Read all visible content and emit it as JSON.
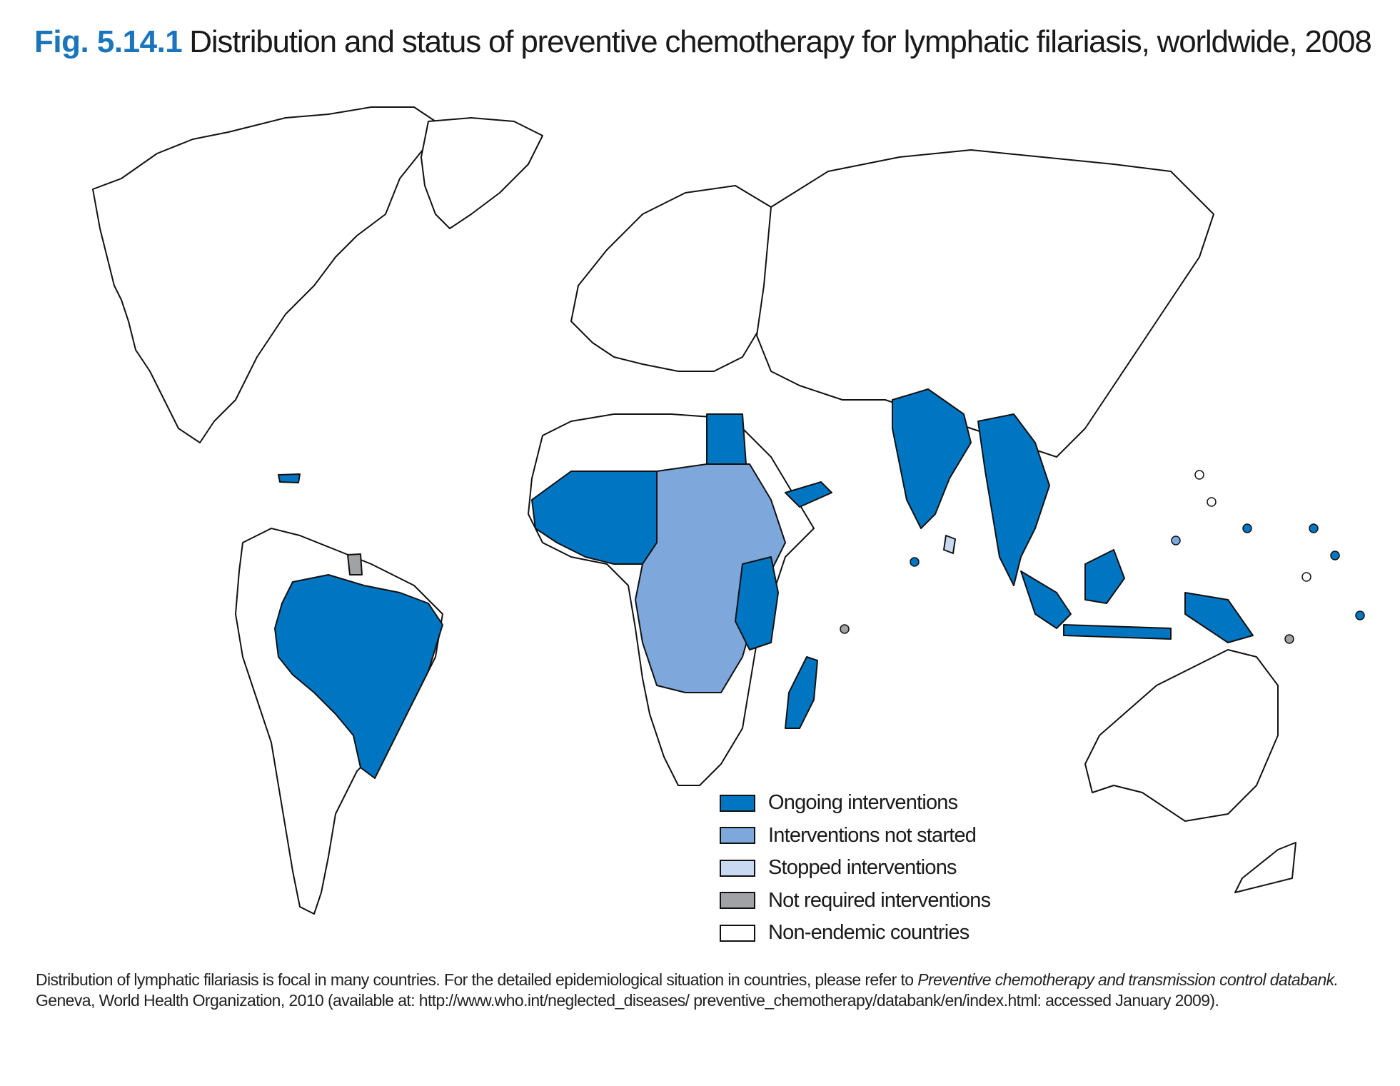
{
  "figure": {
    "number": "Fig. 5.14.1",
    "title": "Distribution and status of preventive chemotherapy for lymphatic filariasis, worldwide, 2008"
  },
  "legend": {
    "items": [
      {
        "label": "Ongoing interventions",
        "color": "#0075c2"
      },
      {
        "label": "Interventions not started",
        "color": "#7ea7dc"
      },
      {
        "label": "Stopped interventions",
        "color": "#c9d9f2"
      },
      {
        "label": "Not required interventions",
        "color": "#a0a2a6"
      },
      {
        "label": "Non-endemic countries",
        "color": "#ffffff"
      }
    ]
  },
  "note": {
    "text_1": "Distribution of lymphatic filariasis is focal in many countries. For the detailed epidemiological situation in countries, please refer to ",
    "italic": "Preventive chemotherapy and transmission control databank.",
    "text_2": "Geneva, World Health Organization, 2010 (available at: http://www.who.int/neglected_diseases/ preventive_chemotherapy/databank/en/index.html: accessed January 2009)."
  },
  "colors": {
    "ongoing": "#0075c2",
    "not_started": "#7ea7dc",
    "stopped": "#c9d9f2",
    "not_required": "#a0a2a6",
    "non_endemic": "#ffffff",
    "title_accent": "#1b75bc"
  }
}
